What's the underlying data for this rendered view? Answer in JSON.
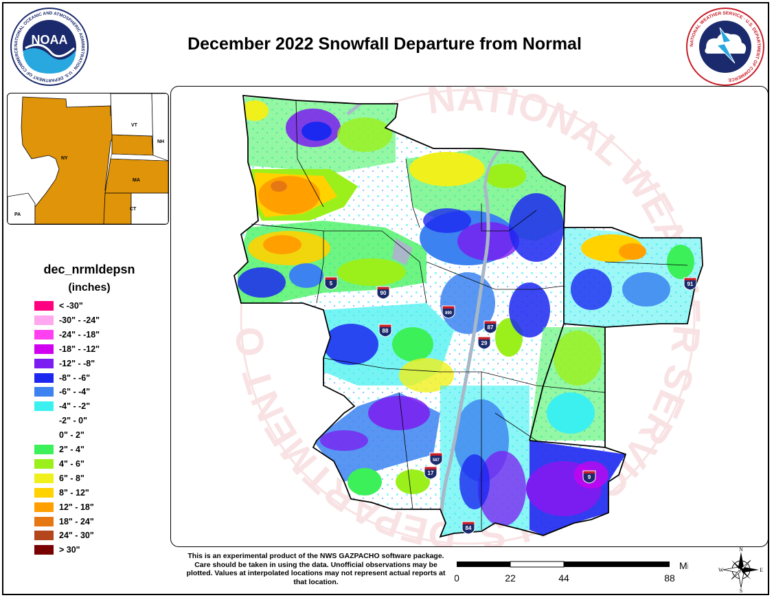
{
  "title": "December 2022 Snowfall Departure from Normal",
  "logos": {
    "noaa": {
      "center_text": "NOAA",
      "ring_text": "NATIONAL OCEANIC AND ATMOSPHERIC ADMINISTRATION · U.S. DEPARTMENT OF COMMERCE"
    },
    "nws": {
      "ring_text": "NATIONAL WEATHER SERVICE · U.S. DEPARTMENT OF COMMERCE"
    }
  },
  "inset": {
    "states": [
      "NY",
      "VT",
      "NH",
      "MA",
      "CT",
      "PA"
    ],
    "highlight_color": "#e0940a"
  },
  "legend": {
    "title": "dec_nrmldepsn",
    "units": "(inches)",
    "items": [
      {
        "label": "< -30\"",
        "color": "#ff0080"
      },
      {
        "label": "-30\" - -24\"",
        "color": "#ffa8f0"
      },
      {
        "label": "-24\" - -18\"",
        "color": "#ff40f0"
      },
      {
        "label": "-18\" - -12\"",
        "color": "#d200f0"
      },
      {
        "label": "-12\" - -8\"",
        "color": "#7b1cf0"
      },
      {
        "label": "-8\" - -6\"",
        "color": "#1c28f0"
      },
      {
        "label": "-6\" - -4\"",
        "color": "#3c82f0"
      },
      {
        "label": "-4\" - -2\"",
        "color": "#3cf0f0"
      },
      {
        "label": "-2\" - 0\"",
        "color": "#ffffff"
      },
      {
        "label": "0\" - 2\"",
        "color": "#ffffff"
      },
      {
        "label": "2\" - 4\"",
        "color": "#3cf05a"
      },
      {
        "label": "4\" - 6\"",
        "color": "#9bf01c"
      },
      {
        "label": "6\" - 8\"",
        "color": "#f0f01c"
      },
      {
        "label": "8\" - 12\"",
        "color": "#ffd200"
      },
      {
        "label": "12\" - 18\"",
        "color": "#ffa000"
      },
      {
        "label": "18\" - 24\"",
        "color": "#e67814"
      },
      {
        "label": "24\" - 30\"",
        "color": "#b4461e"
      },
      {
        "label": "> 30\"",
        "color": "#780000"
      }
    ]
  },
  "map": {
    "watermark": "NATIONAL WEATHER SERVICE · U.S. DEPARTMENT OF COMMERCE",
    "interstates": [
      "5",
      "90",
      "88",
      "890",
      "87",
      "29",
      "91",
      "587",
      "17",
      "84",
      "9"
    ]
  },
  "disclaimer": "This is an experimental product of the NWS GAZPACHO software package. Care should be taken in using the data. Unofficial observations may be plotted. Values at interpolated locations may not represent actual reports at that location.",
  "scale": {
    "unit": "Miles",
    "ticks": [
      "0",
      "22",
      "44",
      "88"
    ]
  },
  "compass": {
    "n": "N",
    "s": "S",
    "e": "E",
    "w": "W"
  }
}
